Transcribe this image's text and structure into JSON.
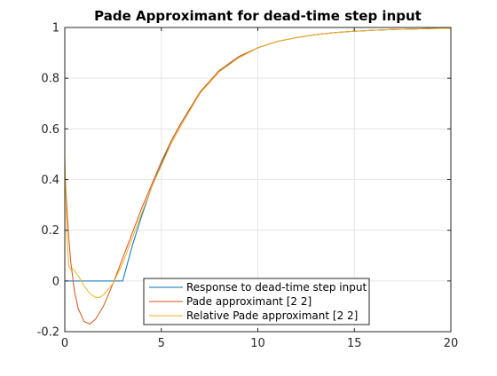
{
  "chart_data": {
    "type": "line",
    "title": "Pade Approximant for dead-time step input",
    "xlabel": "",
    "ylabel": "",
    "xlim": [
      0,
      20
    ],
    "ylim": [
      -0.2,
      1
    ],
    "xticks": [
      0,
      5,
      10,
      15,
      20
    ],
    "xtick_labels": [
      "0",
      "5",
      "10",
      "15",
      "20"
    ],
    "yticks": [
      -0.2,
      0,
      0.2,
      0.4,
      0.6,
      0.8,
      1
    ],
    "ytick_labels": [
      "-0.2",
      "0",
      "0.2",
      "0.4",
      "0.6",
      "0.8",
      "1"
    ],
    "grid": true,
    "legend_position": "bottom-center",
    "series": [
      {
        "name": "Response to dead-time step input",
        "color": "#0072BD",
        "x": [
          0,
          3,
          3.5,
          4,
          4.5,
          5,
          5.5,
          6,
          7,
          8,
          9,
          10,
          11,
          12,
          13,
          14,
          15,
          16,
          17,
          18,
          19,
          20
        ],
        "y": [
          0,
          0,
          0.14,
          0.26,
          0.37,
          0.46,
          0.55,
          0.62,
          0.74,
          0.83,
          0.88,
          0.92,
          0.945,
          0.96,
          0.972,
          0.98,
          0.985,
          0.989,
          0.992,
          0.994,
          0.996,
          0.997
        ]
      },
      {
        "name": "Pade approximant [2 2]",
        "color": "#D95319",
        "x": [
          0,
          0.1,
          0.2,
          0.3,
          0.5,
          0.7,
          1.0,
          1.3,
          1.6,
          2.0,
          2.5,
          3.0,
          3.5,
          4.0,
          4.5,
          5.0,
          5.5,
          6.0,
          7.0,
          8.0,
          9.0,
          10.0,
          11.0,
          12.0,
          13.0,
          14.0,
          15.0,
          16.0,
          17.0,
          18.0,
          19.0,
          20.0
        ],
        "y": [
          0.45,
          0.3,
          0.18,
          0.08,
          -0.04,
          -0.11,
          -0.16,
          -0.17,
          -0.15,
          -0.1,
          -0.01,
          0.09,
          0.19,
          0.29,
          0.38,
          0.47,
          0.55,
          0.62,
          0.745,
          0.83,
          0.885,
          0.92,
          0.945,
          0.96,
          0.972,
          0.98,
          0.985,
          0.989,
          0.992,
          0.994,
          0.996,
          0.997
        ]
      },
      {
        "name": "Relative Pade approximant [2 2]",
        "color": "#EDB120",
        "x": [
          0,
          0.1,
          0.2,
          0.3,
          0.4,
          0.5,
          0.7,
          1.0,
          1.3,
          1.6,
          1.8,
          2.0,
          2.5,
          3.0,
          3.5,
          4.0,
          4.5,
          5.0,
          5.5,
          6.0,
          7.0,
          8.0,
          9.0,
          10.0,
          11.0,
          12.0,
          13.0,
          14.0,
          15.0,
          16.0,
          17.0,
          18.0,
          19.0,
          20.0
        ],
        "y": [
          0.5,
          0.2,
          0.06,
          0.045,
          0.05,
          0.04,
          0.02,
          -0.02,
          -0.05,
          -0.065,
          -0.065,
          -0.055,
          -0.01,
          0.07,
          0.17,
          0.27,
          0.37,
          0.455,
          0.54,
          0.61,
          0.74,
          0.825,
          0.88,
          0.92,
          0.945,
          0.96,
          0.972,
          0.98,
          0.985,
          0.989,
          0.992,
          0.994,
          0.996,
          0.997
        ]
      }
    ]
  },
  "colors": {
    "axis": "#262626",
    "grid": "#e6e6e6",
    "background": "#ffffff"
  }
}
